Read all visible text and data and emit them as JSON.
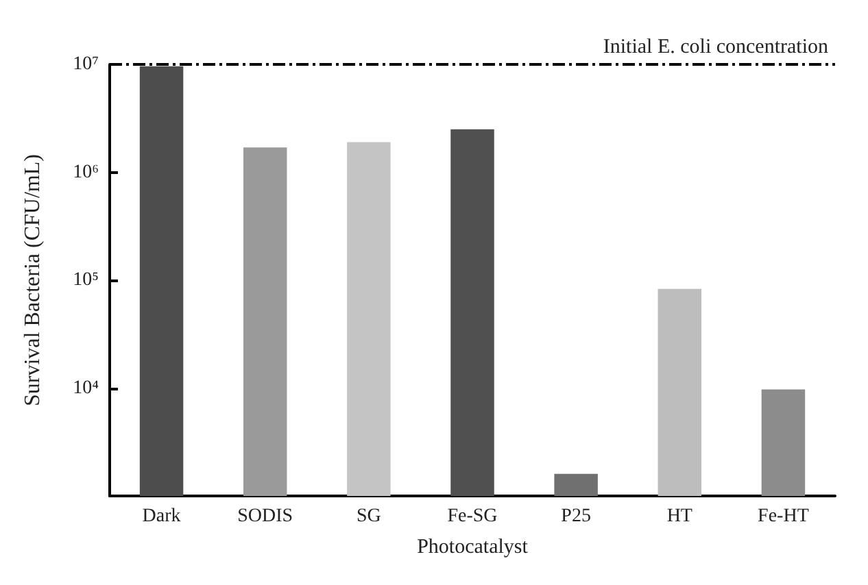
{
  "chart_data": {
    "type": "bar",
    "xlabel": "Photocatalyst",
    "ylabel": "Survival Bacteria (CFU/mL)",
    "categories": [
      "Dark",
      "SODIS",
      "SG",
      "Fe-SG",
      "P25",
      "HT",
      "Fe-HT"
    ],
    "values": [
      9600000,
      1700000,
      1900000,
      2500000,
      1600,
      83000,
      9700
    ],
    "colors": [
      "#4d4d4d",
      "#9a9a9a",
      "#c4c4c4",
      "#505050",
      "#707070",
      "#bdbdbd",
      "#8c8c8c"
    ],
    "log": true,
    "ylim": [
      1000,
      10000000
    ],
    "yticks": [
      {
        "value": 1000,
        "label": null
      },
      {
        "value": 10000,
        "label": "10⁴"
      },
      {
        "value": 100000,
        "label": "10⁵"
      },
      {
        "value": 1000000,
        "label": "10⁶"
      },
      {
        "value": 10000000,
        "label": "10⁷"
      }
    ],
    "ref_lines": [
      {
        "axis": "y",
        "value": 10000000,
        "label": "Initial E. coli concentration",
        "color": "#000000",
        "line_style": "dashed"
      }
    ],
    "grid": false
  }
}
